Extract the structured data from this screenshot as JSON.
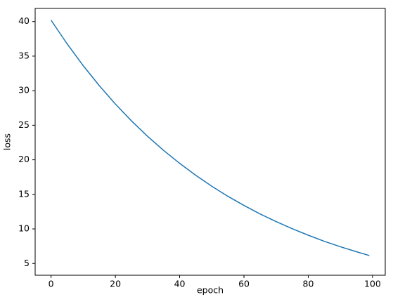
{
  "chart_data": {
    "type": "line",
    "x_label": "epoch",
    "y_label": "loss",
    "x": [
      0,
      5,
      10,
      15,
      20,
      25,
      30,
      35,
      40,
      45,
      50,
      55,
      60,
      65,
      70,
      75,
      80,
      85,
      90,
      95,
      99
    ],
    "series": [
      {
        "name": "loss",
        "color": "#1f77b4",
        "values": [
          40.2,
          36.77,
          33.62,
          30.73,
          28.07,
          25.64,
          23.41,
          21.36,
          19.49,
          17.76,
          16.18,
          14.72,
          13.4,
          12.17,
          11.06,
          10.03,
          9.09,
          8.21,
          7.42,
          6.7,
          6.15
        ]
      }
    ],
    "xlim": [
      -4.95,
      103.95
    ],
    "ylim": [
      3.3,
      41.9
    ],
    "xticks": [
      0,
      20,
      40,
      60,
      80,
      100
    ],
    "yticks": [
      5,
      10,
      15,
      20,
      25,
      30,
      35,
      40
    ],
    "grid": false
  }
}
